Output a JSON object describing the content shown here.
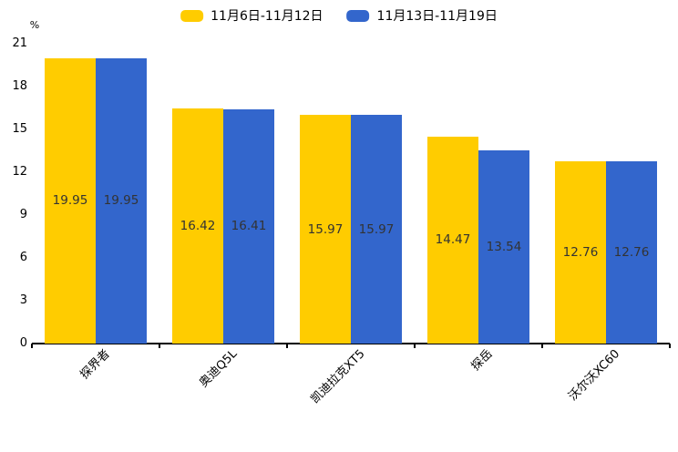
{
  "chart_data": {
    "type": "bar",
    "title": "",
    "xlabel": "",
    "ylabel": "%",
    "categories": [
      "探界者",
      "奥迪Q5L",
      "凯迪拉克XT5",
      "探岳",
      "沃尔沃XC60"
    ],
    "series": [
      {
        "name": "11月6日-11月12日",
        "color": "#FFCC00",
        "values": [
          19.95,
          16.42,
          15.97,
          14.47,
          12.76
        ]
      },
      {
        "name": "11月13日-11月19日",
        "color": "#3366CC",
        "values": [
          19.95,
          16.41,
          15.97,
          13.54,
          12.76
        ]
      }
    ],
    "ylim": [
      0,
      21
    ],
    "yticks": [
      0,
      3,
      6,
      9,
      12,
      15,
      18,
      21
    ],
    "grid": false,
    "legend_position": "top-center",
    "value_labels_shown": true,
    "value_label_color": "#333333",
    "axis_color": "#000000"
  }
}
